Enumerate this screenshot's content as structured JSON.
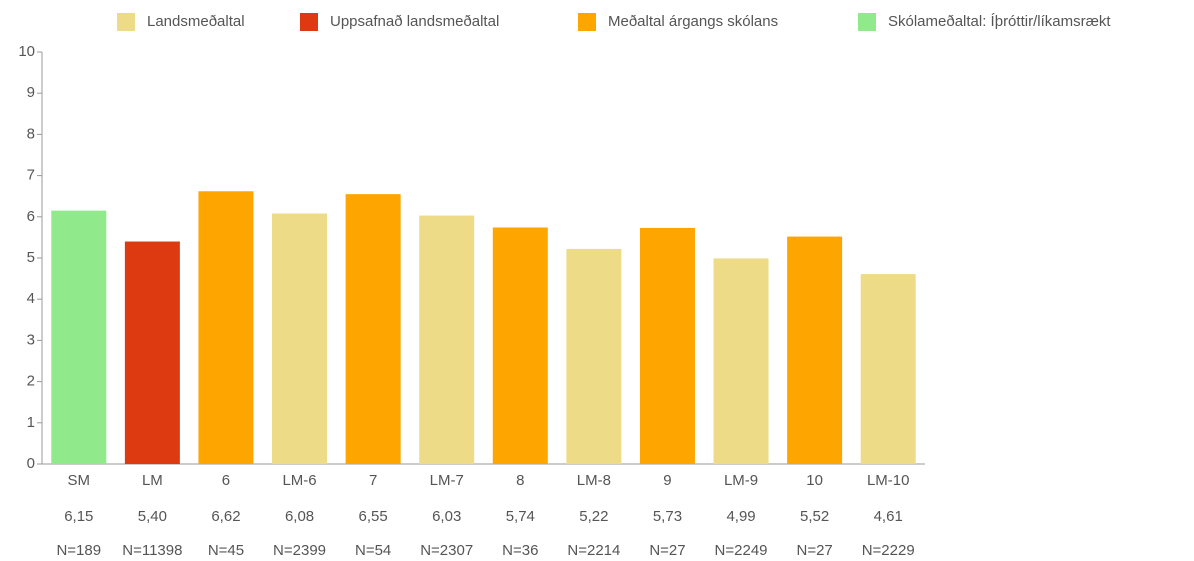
{
  "chart_data": {
    "type": "bar",
    "legend": [
      {
        "name": "Landsmeðaltal",
        "color": "#eedb88"
      },
      {
        "name": "Uppsafnað landsmeðaltal",
        "color": "#dd3a12"
      },
      {
        "name": "Meðaltal árgangs skólans",
        "color": "#ffa500"
      },
      {
        "name": "Skólameðaltal: Íþróttir/líkamsrækt",
        "color": "#90ea8c"
      }
    ],
    "categories": [
      "SM",
      "LM",
      "6",
      "LM-6",
      "7",
      "LM-7",
      "8",
      "LM-8",
      "9",
      "LM-9",
      "10",
      "LM-10"
    ],
    "values": [
      6.15,
      5.4,
      6.62,
      6.08,
      6.55,
      6.03,
      5.74,
      5.22,
      5.73,
      4.99,
      5.52,
      4.61
    ],
    "value_labels": [
      "6,15",
      "5,40",
      "6,62",
      "6,08",
      "6,55",
      "6,03",
      "5,74",
      "5,22",
      "5,73",
      "4,99",
      "5,52",
      "4,61"
    ],
    "sample_sizes": [
      "N=189",
      "N=11398",
      "N=45",
      "N=2399",
      "N=54",
      "N=2307",
      "N=36",
      "N=2214",
      "N=27",
      "N=2249",
      "N=27",
      "N=2229"
    ],
    "colors": [
      "#90ea8c",
      "#dd3a12",
      "#ffa500",
      "#eedb88",
      "#ffa500",
      "#eedb88",
      "#ffa500",
      "#eedb88",
      "#ffa500",
      "#eedb88",
      "#ffa500",
      "#eedb88"
    ],
    "ylim": [
      0,
      10
    ],
    "yticks": [
      0,
      1,
      2,
      3,
      4,
      5,
      6,
      7,
      8,
      9,
      10
    ],
    "grid": false
  }
}
